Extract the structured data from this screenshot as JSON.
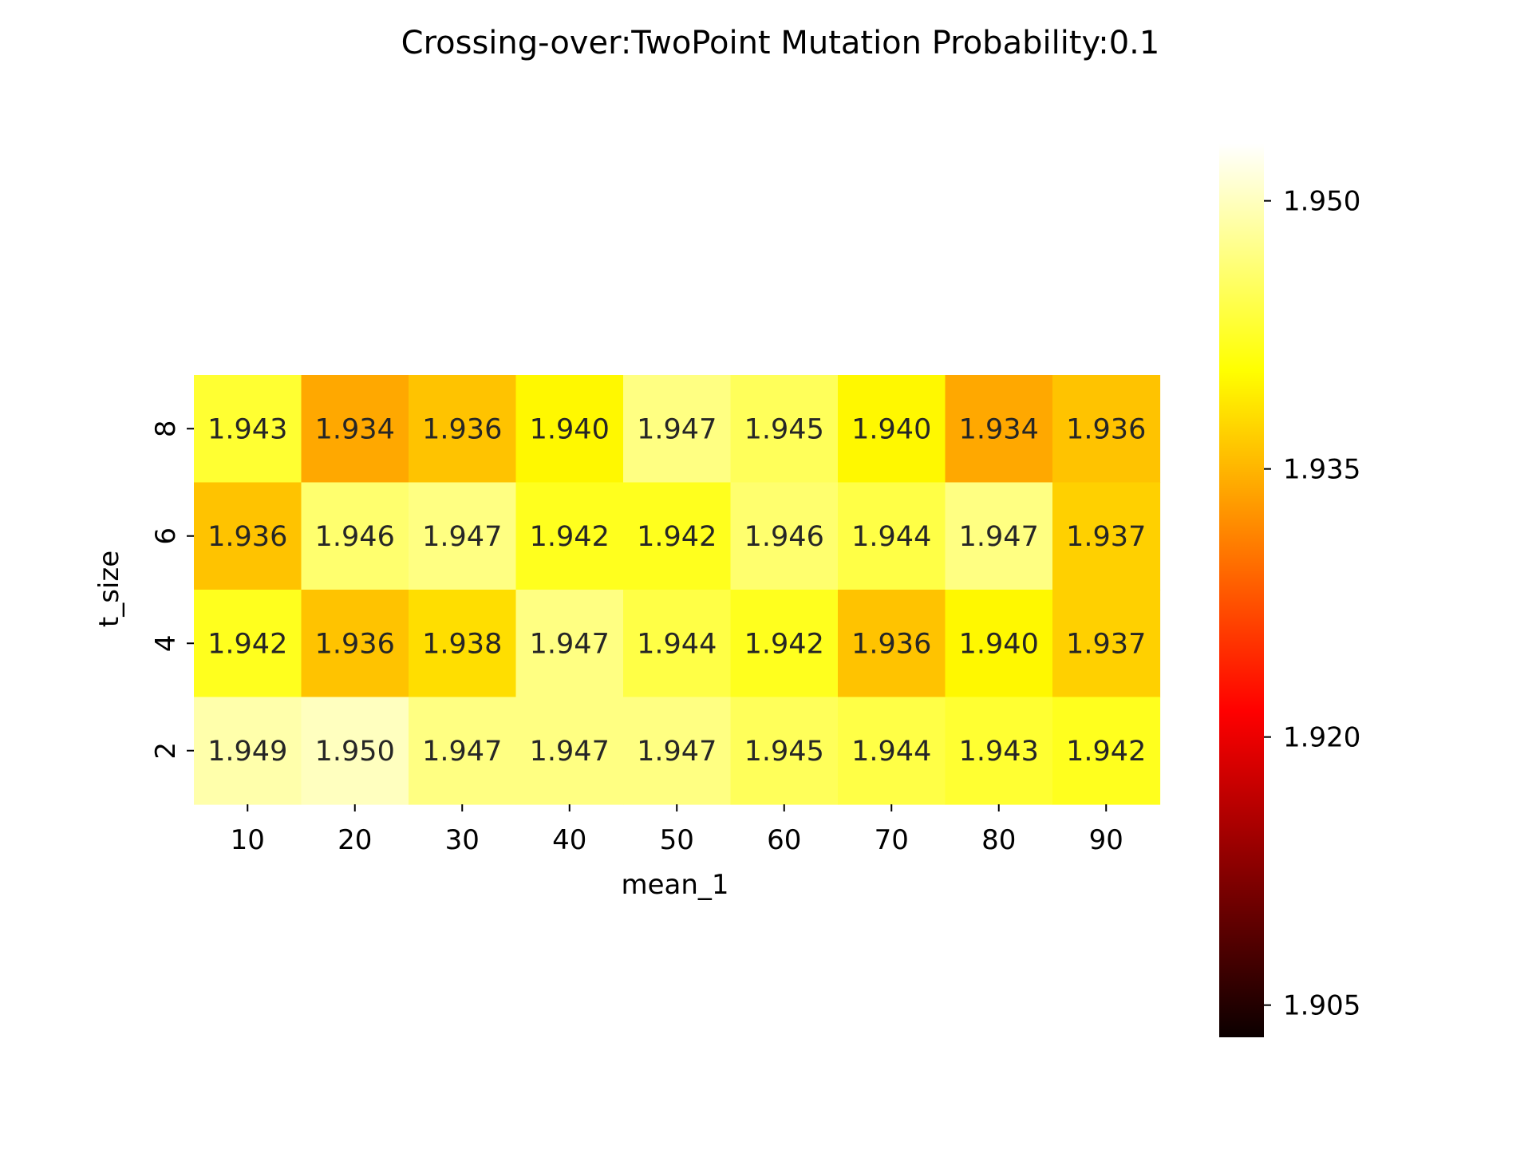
{
  "chart_data": {
    "type": "heatmap",
    "title": "Crossing-over:TwoPoint Mutation Probability:0.1",
    "xlabel": "mean_1",
    "ylabel": "t_size",
    "x": [
      "10",
      "20",
      "30",
      "40",
      "50",
      "60",
      "70",
      "80",
      "90"
    ],
    "y": [
      "8",
      "6",
      "4",
      "2"
    ],
    "values": [
      [
        1.943,
        1.934,
        1.936,
        1.94,
        1.947,
        1.945,
        1.94,
        1.934,
        1.936
      ],
      [
        1.936,
        1.946,
        1.947,
        1.942,
        1.942,
        1.946,
        1.944,
        1.947,
        1.937
      ],
      [
        1.942,
        1.936,
        1.938,
        1.947,
        1.944,
        1.942,
        1.936,
        1.94,
        1.937
      ],
      [
        1.949,
        1.95,
        1.947,
        1.947,
        1.947,
        1.945,
        1.944,
        1.943,
        1.942
      ]
    ],
    "value_format": "0.000",
    "colormap": "hot",
    "colorbar": {
      "vmin": 1.9032,
      "vmax": 1.9532,
      "ticks": [
        "1.905",
        "1.920",
        "1.935",
        "1.950"
      ]
    },
    "grid": false,
    "legend": "none"
  }
}
